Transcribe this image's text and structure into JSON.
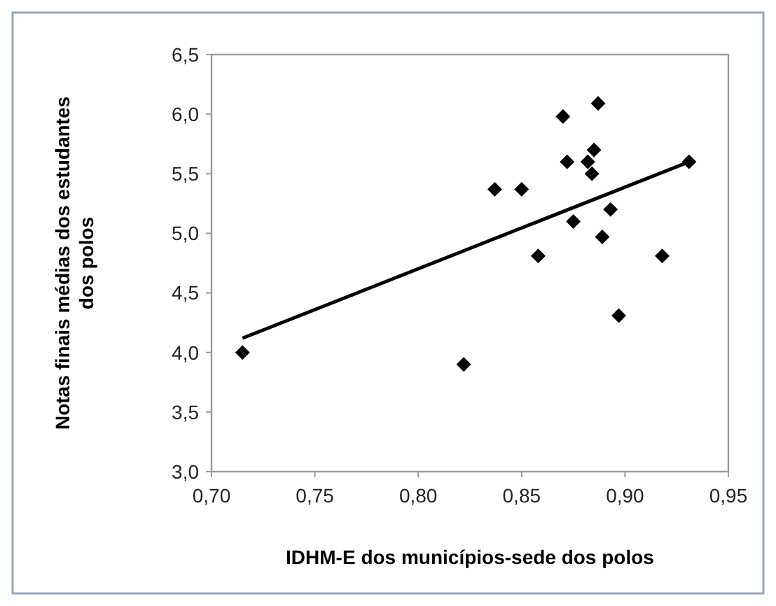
{
  "chart_data": {
    "type": "scatter",
    "xlabel": "IDHM-E dos municípios-sede dos polos",
    "ylabel": "Notas finais médias dos estudantes\ndos polos",
    "xlim": [
      0.7,
      0.95
    ],
    "ylim": [
      3,
      6.5
    ],
    "xticks": [
      {
        "value": 0.7,
        "label": "0,70"
      },
      {
        "value": 0.75,
        "label": "0,75"
      },
      {
        "value": 0.8,
        "label": "0,80"
      },
      {
        "value": 0.85,
        "label": "0,85"
      },
      {
        "value": 0.9,
        "label": "0,90"
      },
      {
        "value": 0.95,
        "label": "0,95"
      }
    ],
    "yticks": [
      {
        "value": 3,
        "label": "3,0"
      },
      {
        "value": 3.5,
        "label": "3,5"
      },
      {
        "value": 4,
        "label": "4,0"
      },
      {
        "value": 4.5,
        "label": "4,5"
      },
      {
        "value": 5,
        "label": "5,0"
      },
      {
        "value": 5.5,
        "label": "5,5"
      },
      {
        "value": 6,
        "label": "6,0"
      },
      {
        "value": 6.5,
        "label": "6,5"
      }
    ],
    "grid": false,
    "marker": "diamond",
    "series": [
      {
        "color": "#000000",
        "x": [
          0.715,
          0.822,
          0.837,
          0.85,
          0.858,
          0.87,
          0.872,
          0.875,
          0.882,
          0.884,
          0.885,
          0.887,
          0.889,
          0.893,
          0.897,
          0.918,
          0.931
        ],
        "values": [
          4.0,
          3.9,
          5.37,
          5.37,
          4.81,
          5.98,
          5.6,
          5.1,
          5.6,
          5.5,
          5.7,
          6.09,
          4.97,
          5.2,
          4.31,
          4.81,
          5.6
        ]
      },
      {
        "type": "line",
        "color": "#000000",
        "x": [
          0.715,
          0.931
        ],
        "values": [
          4.12,
          5.6
        ],
        "line_style": "solid",
        "marker": "none"
      }
    ]
  }
}
